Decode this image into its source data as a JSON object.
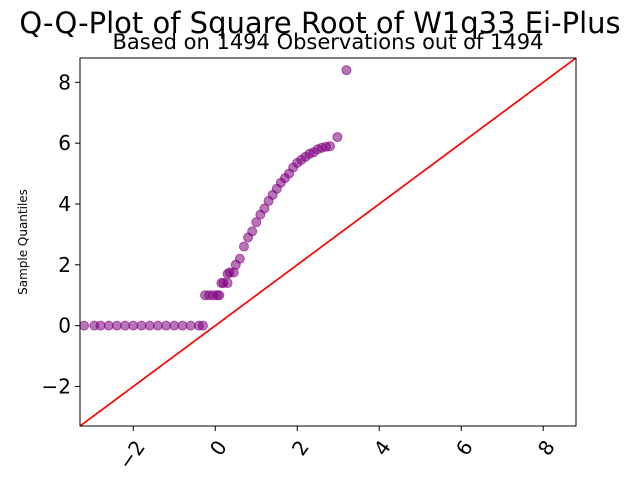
{
  "chart_data": {
    "type": "scatter",
    "title": "Q-Q-Plot of Square Root of W1q33 Ei-Plus",
    "subtitle": "Based on 1494 Observations out of 1494",
    "xlabel": "",
    "ylabel": "Sample Quantiles",
    "xlim": [
      -3.3,
      8.8
    ],
    "ylim": [
      -3.3,
      8.8
    ],
    "xticks": [
      "−2",
      "0",
      "2",
      "4",
      "6",
      "8"
    ],
    "xtick_values": [
      -2,
      0,
      2,
      4,
      6,
      8
    ],
    "yticks": [
      "−2",
      "0",
      "2",
      "4",
      "6",
      "8"
    ],
    "ytick_values": [
      -2,
      0,
      2,
      4,
      6,
      8
    ],
    "grid": false,
    "reference_line": {
      "x": [
        -3.3,
        8.8
      ],
      "y": [
        -3.3,
        8.8
      ],
      "color": "#ff0000"
    },
    "marker_color": "#800080",
    "series": [
      {
        "x": [
          -3.2,
          -2.95,
          -2.8,
          -2.6,
          -2.4,
          -2.2,
          -2.0,
          -1.8,
          -1.6,
          -1.4,
          -1.2,
          -1.0,
          -0.8,
          -0.6,
          -0.4,
          -0.3,
          -0.25,
          -0.15,
          -0.05,
          0.05,
          0.1,
          0.15,
          0.2,
          0.3,
          0.3,
          0.35,
          0.45,
          0.5,
          0.6,
          0.7,
          0.8,
          0.9,
          1.0,
          1.1,
          1.2,
          1.3,
          1.4,
          1.5,
          1.6,
          1.7,
          1.8,
          1.9,
          2.0,
          2.1,
          2.2,
          2.3,
          2.4,
          2.5,
          2.6,
          2.7,
          2.8,
          2.98,
          3.2
        ],
        "y": [
          0,
          0,
          0,
          0,
          0,
          0,
          0,
          0,
          0,
          0,
          0,
          0,
          0,
          0,
          0,
          0,
          1,
          1,
          1,
          1,
          1,
          1.4,
          1.4,
          1.4,
          1.7,
          1.75,
          1.75,
          2.0,
          2.2,
          2.6,
          2.9,
          3.1,
          3.4,
          3.65,
          3.85,
          4.1,
          4.3,
          4.5,
          4.7,
          4.85,
          5.0,
          5.2,
          5.35,
          5.45,
          5.55,
          5.65,
          5.7,
          5.8,
          5.85,
          5.88,
          5.9,
          6.2,
          8.4
        ]
      }
    ]
  }
}
